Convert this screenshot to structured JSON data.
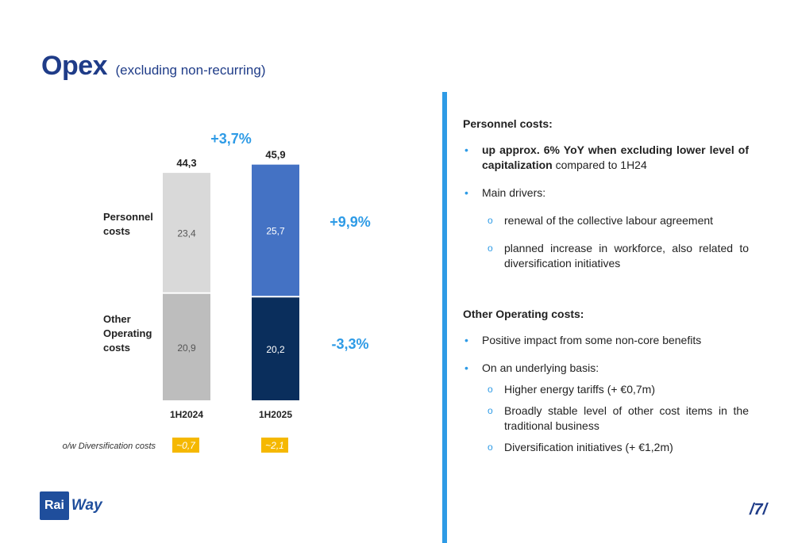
{
  "header": {
    "title": "Opex",
    "subtitle": "(excluding non-recurring)"
  },
  "chart_data": {
    "type": "bar",
    "stacked": true,
    "categories": [
      "1H2024",
      "1H2025"
    ],
    "series": [
      {
        "name": "Other Operating costs",
        "label": "Other\nOperating\ncosts",
        "values": [
          20.9,
          20.2
        ],
        "value_labels": [
          "20,9",
          "20,2"
        ],
        "colors": [
          "#BDBDBD",
          "#0A2E5C"
        ]
      },
      {
        "name": "Personnel costs",
        "label": "Personnel\ncosts",
        "values": [
          23.4,
          25.7
        ],
        "value_labels": [
          "23,4",
          "25,7"
        ],
        "colors": [
          "#D9D9D9",
          "#4472C4"
        ]
      }
    ],
    "totals": [
      44.3,
      45.9
    ],
    "total_labels": [
      "44,3",
      "45,9"
    ],
    "total_change": "+3,7%",
    "series_changes": {
      "Personnel costs": "+9,9%",
      "Other Operating costs": "-3,3%"
    },
    "diversification": {
      "label": "o/w Diversification costs",
      "values": [
        "~0,7",
        "~2,1"
      ]
    },
    "ylim": [
      0,
      46
    ],
    "grid": false,
    "colors": {
      "accent": "#2E9BE6",
      "badge": "#F5B800"
    }
  },
  "panel": {
    "personnel_heading": "Personnel costs:",
    "p_bullet1_bold": "up approx. 6% YoY when excluding lower level of capitalization",
    "p_bullet1_rest": " compared to 1H24",
    "p_bullet2": "Main drivers:",
    "p_sub1": "renewal of the collective labour agreement",
    "p_sub2": "planned increase in workforce, also related to diversification initiatives",
    "other_heading": "Other Operating costs:",
    "o_bullet1": "Positive impact from some non-core benefits",
    "o_bullet2": "On an underlying basis:",
    "o_sub1": "Higher energy tariffs (+ €0,7m)",
    "o_sub2": "Broadly stable level of other cost items in the traditional business",
    "o_sub3": "Diversification initiatives (+ €1,2m)"
  },
  "logo": {
    "part1": "Rai",
    "part2": "Way"
  },
  "page_number": "/7/"
}
